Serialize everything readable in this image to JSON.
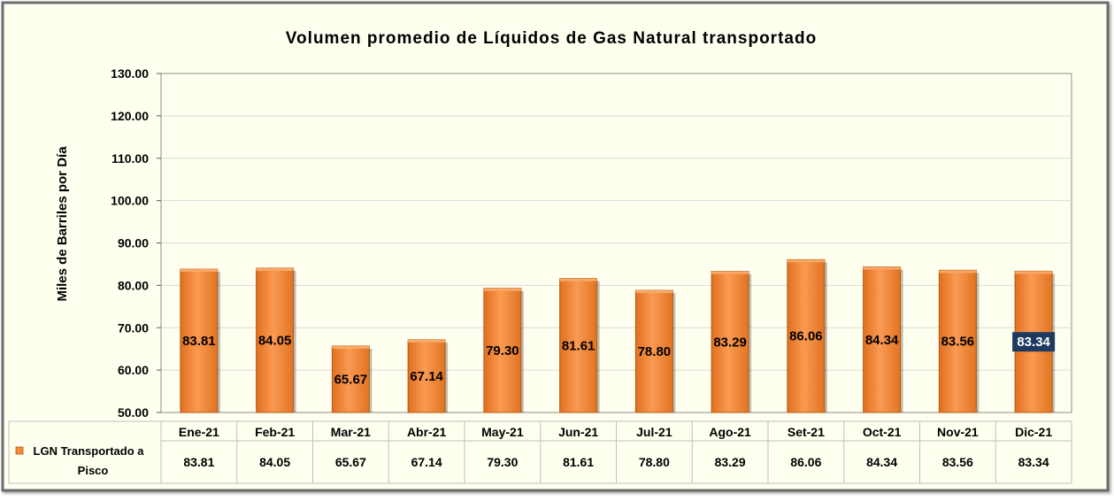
{
  "chart_data": {
    "type": "bar",
    "title": "Volumen promedio de Líquidos de Gas Natural transportado",
    "xlabel": "",
    "ylabel": "Miles de Barriles por Día",
    "ylim": [
      50,
      130
    ],
    "ytick_step": 10,
    "yticks": [
      "50.00",
      "60.00",
      "70.00",
      "80.00",
      "90.00",
      "100.00",
      "110.00",
      "120.00",
      "130.00"
    ],
    "categories": [
      "Ene-21",
      "Feb-21",
      "Mar-21",
      "Abr-21",
      "May-21",
      "Jun-21",
      "Jul-21",
      "Ago-21",
      "Set-21",
      "Oct-21",
      "Nov-21",
      "Dic-21"
    ],
    "series": [
      {
        "name": "LGN Transportado a Pisco",
        "values": [
          83.81,
          84.05,
          65.67,
          67.14,
          79.3,
          81.61,
          78.8,
          83.29,
          86.06,
          84.34,
          83.56,
          83.34
        ],
        "labels": [
          "83.81",
          "84.05",
          "65.67",
          "67.14",
          "79.30",
          "81.61",
          "78.80",
          "83.29",
          "86.06",
          "84.34",
          "83.56",
          "83.34"
        ]
      }
    ],
    "grid": true,
    "data_table": true,
    "highlighted_label_index": 11
  },
  "legend_label_line1": "LGN Transportado a",
  "legend_label_line2": "Pisco",
  "colors": {
    "bar": "#f68b3c",
    "bar_top": "#f9a867",
    "bar_edge": "#b35a12",
    "plot_bg": "#fffff0",
    "outer_bg": "#fffff0",
    "table_bg": "#fffff0",
    "highlight_bg": "#1f3a5f",
    "highlight_text": "#ffffff",
    "grid": "#d9d9d9",
    "border": "#595959"
  }
}
